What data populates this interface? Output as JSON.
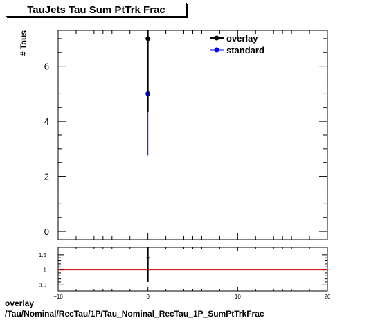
{
  "title": "TauJets Tau Sum PtTrk Frac",
  "footer": {
    "line1": "overlay",
    "line2": "/Tau/Nominal/RecTau/1P/Tau_Nominal_RecTau_1P_SumPtTrkFrac"
  },
  "colors": {
    "overlay": "#000000",
    "standard": "#0000ff",
    "ratio_line": "#cc0000"
  },
  "chart_data": [
    {
      "type": "scatter",
      "panel": "main",
      "ylabel": "# Taus",
      "xlim": [
        -10,
        20
      ],
      "ylim": [
        -0.3,
        7.3
      ],
      "y_ticks": [
        0,
        2,
        4,
        6
      ],
      "legend": {
        "placement": "top-right",
        "entries": [
          "overlay",
          "standard"
        ]
      },
      "series": [
        {
          "name": "overlay",
          "x": [
            0
          ],
          "y": [
            7.0
          ],
          "yerr": [
            2.65
          ]
        },
        {
          "name": "standard",
          "x": [
            0
          ],
          "y": [
            5.0
          ],
          "yerr": [
            2.24
          ]
        }
      ]
    },
    {
      "type": "scatter",
      "panel": "ratio",
      "xlim": [
        -10,
        20
      ],
      "ylim": [
        0.3,
        1.75
      ],
      "x_ticks": [
        -10,
        0,
        10,
        20
      ],
      "y_ticks": [
        0.5,
        1,
        1.5
      ],
      "reference_line": 1,
      "series": [
        {
          "name": "ratio",
          "x": [
            0
          ],
          "y": [
            1.4
          ],
          "yerr": [
            0.8
          ]
        }
      ]
    }
  ]
}
